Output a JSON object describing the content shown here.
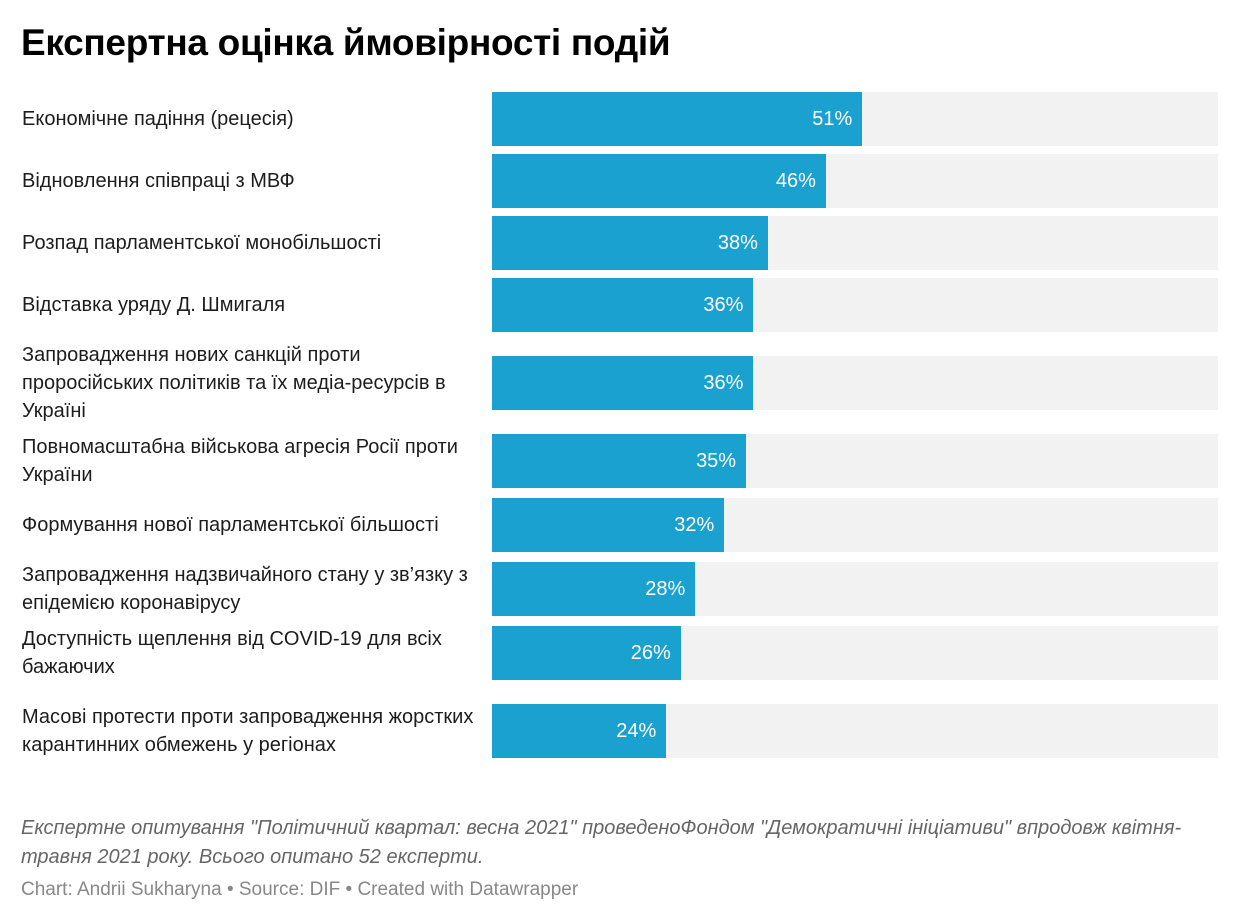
{
  "chart_data": {
    "type": "bar",
    "orientation": "horizontal",
    "title": "Експертна оцінка ймовірності подій",
    "xlabel": "",
    "ylabel": "",
    "xlim": [
      0,
      100
    ],
    "value_suffix": "%",
    "grid": false,
    "colors": {
      "bar": "#1ba1cf",
      "track": "#f2f2f2",
      "value_label": "#ffffff"
    },
    "categories": [
      "Економічне падіння (рецесія)",
      "Відновлення співпраці з МВФ",
      "Розпад парламентської монобільшості",
      "Відставка уряду Д. Шмигаля",
      "Запровадження нових санкцій проти проросійських політиків та їх медіа-ресурсів в Україні",
      "Повномасштабна військова агресія Росії проти України",
      "Формування нової парламентської більшості",
      "Запровадження надзвичайного стану у зв’язку з епідемією коронавірусу",
      "Доступність щеплення від COVID-19 для всіх бажаючих",
      "Масові протести проти запровадження жорстких карантинних обмежень у регіонах"
    ],
    "values": [
      51,
      46,
      38,
      36,
      36,
      35,
      32,
      28,
      26,
      24
    ],
    "value_labels": [
      "51%",
      "46%",
      "38%",
      "36%",
      "36%",
      "35%",
      "32%",
      "28%",
      "26%",
      "24%"
    ]
  },
  "notes": "Експертне опитування \"Політичний квартал: весна 2021\" проведеноФондом \"Демократичні ініціативи\" впродовж квітня-травня 2021 року. Всього опитано 52 експерти.",
  "byline": "Chart: Andrii Sukharyna • Source: DIF • Created with Datawrapper"
}
